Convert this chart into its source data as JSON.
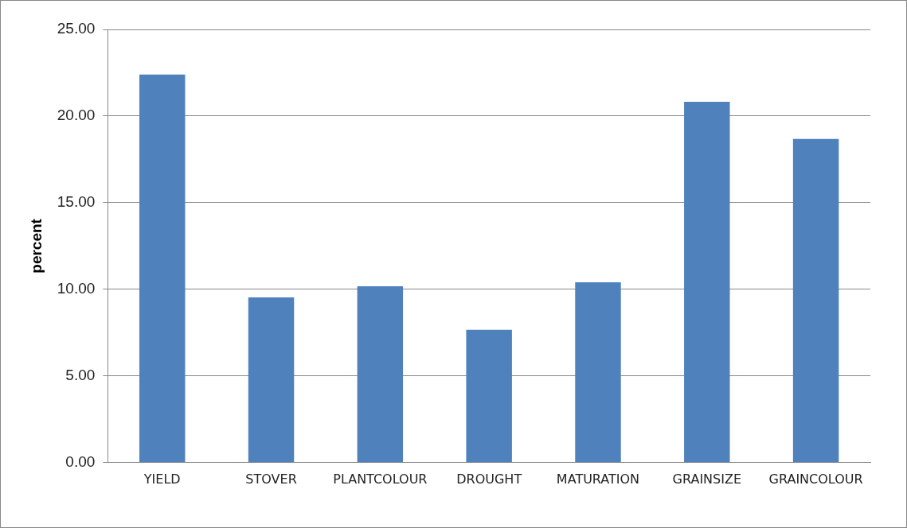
{
  "chart_data": {
    "type": "bar",
    "ylabel": "percent",
    "categories": [
      "YIELD",
      "STOVER",
      "PLANTCOLOUR",
      "DROUGHT",
      "MATURATION",
      "GRAINSIZE",
      "GRAINCOLOUR"
    ],
    "values": [
      22.4,
      9.53,
      10.18,
      7.67,
      10.41,
      20.82,
      18.68
    ],
    "color": "#4f81bd",
    "ylim": [
      0,
      25
    ],
    "yticks": [
      {
        "value": 0,
        "label": "0.00"
      },
      {
        "value": 5,
        "label": "5.00"
      },
      {
        "value": 10,
        "label": "10.00"
      },
      {
        "value": 15,
        "label": "15.00"
      },
      {
        "value": 20,
        "label": "20.00"
      },
      {
        "value": 25,
        "label": "25.00"
      }
    ],
    "grid": "y",
    "legend": false
  }
}
